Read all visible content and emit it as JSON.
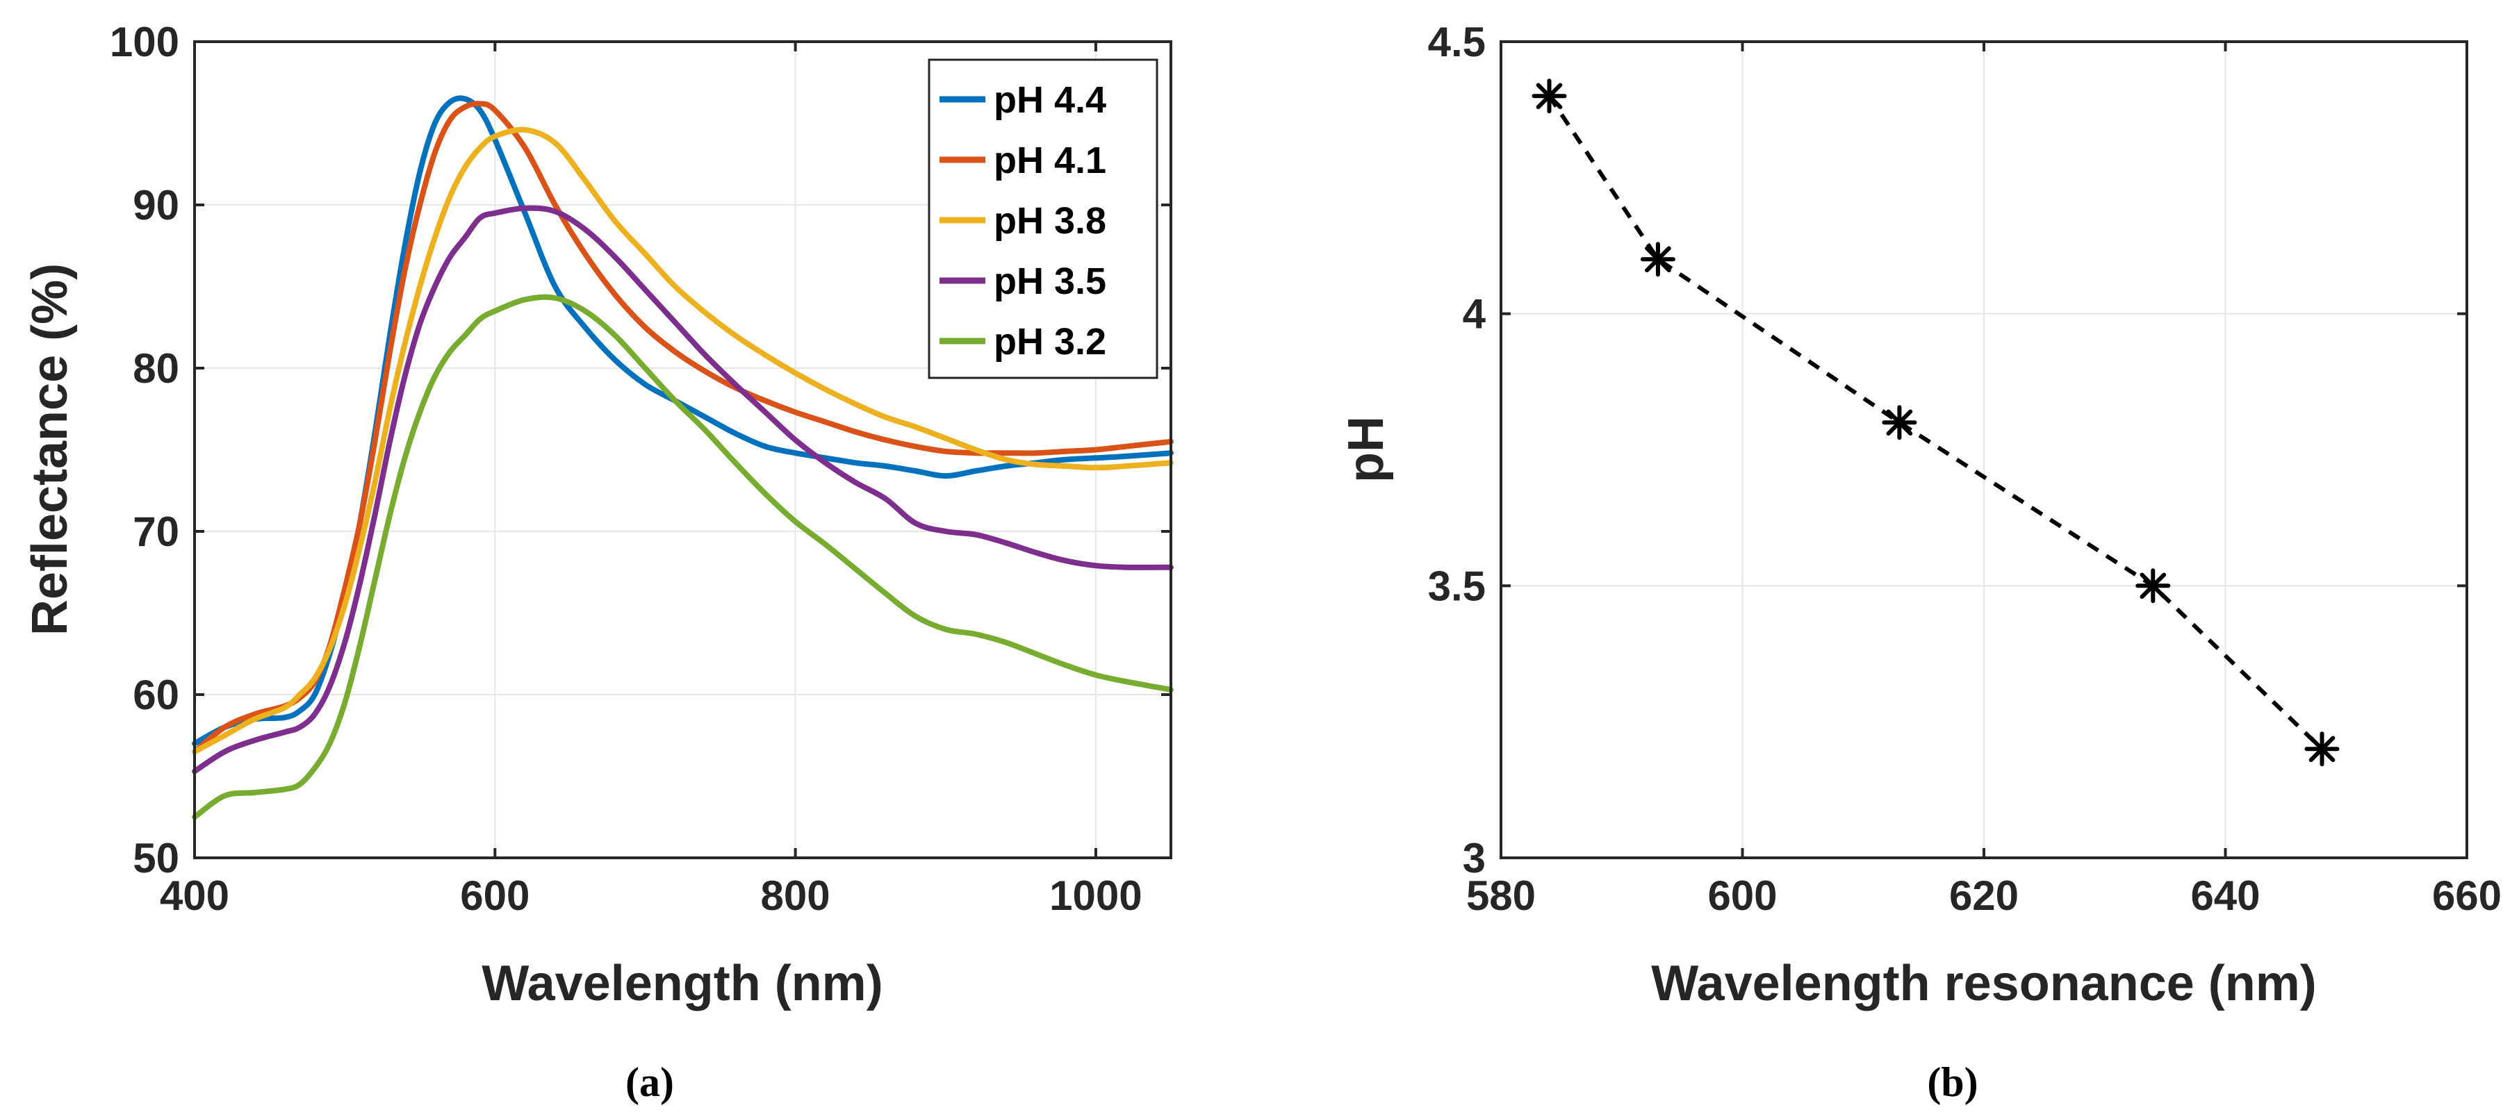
{
  "chart_data": [
    {
      "type": "line",
      "caption": "(a)",
      "xlabel": "Wavelength (nm)",
      "ylabel": "Reflectance (%)",
      "xlim": [
        400,
        1050
      ],
      "ylim": [
        50,
        100
      ],
      "xticks": [
        400,
        600,
        800,
        1000
      ],
      "yticks": [
        50,
        60,
        70,
        80,
        90,
        100
      ],
      "grid": true,
      "legend": "top-right",
      "series": [
        {
          "name": "pH 4.4",
          "color": "#0072BD",
          "x": [
            400,
            420,
            440,
            460,
            470,
            480,
            490,
            500,
            510,
            520,
            530,
            540,
            550,
            560,
            570,
            580,
            590,
            600,
            620,
            640,
            660,
            680,
            700,
            720,
            740,
            760,
            780,
            800,
            820,
            840,
            860,
            880,
            900,
            920,
            940,
            960,
            980,
            1000,
            1020,
            1050
          ],
          "y": [
            57,
            58,
            58.5,
            58.6,
            59,
            60,
            62.5,
            66,
            70.5,
            76,
            82,
            87.5,
            92,
            95,
            96.3,
            96.5,
            95.8,
            94,
            89.5,
            85,
            82.5,
            80.5,
            79,
            78,
            77,
            76,
            75.2,
            74.8,
            74.5,
            74.2,
            74,
            73.7,
            73.4,
            73.7,
            74,
            74.2,
            74.4,
            74.5,
            74.6,
            74.8
          ]
        },
        {
          "name": "pH 4.1",
          "color": "#D95319",
          "x": [
            400,
            420,
            440,
            460,
            470,
            480,
            490,
            500,
            510,
            520,
            530,
            540,
            550,
            560,
            570,
            580,
            590,
            600,
            620,
            640,
            660,
            680,
            700,
            720,
            740,
            760,
            780,
            800,
            820,
            840,
            860,
            880,
            900,
            920,
            940,
            960,
            980,
            1000,
            1020,
            1050
          ],
          "y": [
            56.5,
            58,
            58.8,
            59.3,
            59.8,
            60.8,
            63,
            66.5,
            70.5,
            75.5,
            81,
            86,
            90,
            93.2,
            95.2,
            96,
            96.2,
            95.8,
            93.5,
            90,
            87,
            84.5,
            82.5,
            81,
            79.8,
            78.8,
            78,
            77.3,
            76.7,
            76.1,
            75.6,
            75.2,
            74.9,
            74.8,
            74.8,
            74.8,
            74.9,
            75,
            75.2,
            75.5
          ]
        },
        {
          "name": "pH 3.8",
          "color": "#EDB120",
          "x": [
            400,
            420,
            440,
            460,
            470,
            480,
            490,
            500,
            510,
            520,
            530,
            540,
            550,
            560,
            570,
            580,
            590,
            600,
            620,
            640,
            660,
            680,
            700,
            720,
            740,
            760,
            780,
            800,
            820,
            840,
            860,
            880,
            900,
            920,
            940,
            960,
            980,
            1000,
            1020,
            1050
          ],
          "y": [
            56.5,
            57.5,
            58.5,
            59.2,
            60,
            61,
            62.8,
            65.5,
            69,
            73,
            77.5,
            81.5,
            85,
            88,
            90.5,
            92.3,
            93.5,
            94.2,
            94.6,
            93.8,
            91.5,
            89,
            87,
            85,
            83.4,
            82,
            80.8,
            79.7,
            78.7,
            77.8,
            77,
            76.4,
            75.7,
            75,
            74.4,
            74.1,
            74,
            73.9,
            74,
            74.2
          ]
        },
        {
          "name": "pH 3.5",
          "color": "#7E2F8E",
          "x": [
            400,
            420,
            440,
            460,
            470,
            480,
            490,
            500,
            510,
            520,
            530,
            540,
            550,
            560,
            570,
            580,
            590,
            600,
            620,
            640,
            660,
            680,
            700,
            720,
            740,
            760,
            780,
            800,
            820,
            840,
            860,
            880,
            900,
            920,
            940,
            960,
            980,
            1000,
            1020,
            1050
          ],
          "y": [
            55.3,
            56.5,
            57.2,
            57.7,
            58,
            58.8,
            60.5,
            63.2,
            66.8,
            71,
            75.5,
            79.5,
            82.7,
            85,
            86.8,
            88,
            89.2,
            89.5,
            89.8,
            89.6,
            88.5,
            86.8,
            84.8,
            82.8,
            80.8,
            79,
            77.3,
            75.6,
            74.2,
            73,
            72,
            70.5,
            70,
            69.8,
            69.3,
            68.7,
            68.2,
            67.9,
            67.8,
            67.8
          ]
        },
        {
          "name": "pH 3.2",
          "color": "#77AC30",
          "x": [
            400,
            420,
            440,
            460,
            470,
            480,
            490,
            500,
            510,
            520,
            530,
            540,
            550,
            560,
            570,
            580,
            590,
            600,
            620,
            640,
            660,
            680,
            700,
            720,
            740,
            760,
            780,
            800,
            820,
            840,
            860,
            880,
            900,
            920,
            940,
            960,
            980,
            1000,
            1020,
            1050
          ],
          "y": [
            52.5,
            53.8,
            54,
            54.2,
            54.5,
            55.5,
            57,
            59.5,
            63,
            67,
            71,
            74.5,
            77.3,
            79.5,
            81,
            82,
            83,
            83.5,
            84.2,
            84.3,
            83.5,
            82,
            80,
            78,
            76.2,
            74.2,
            72.3,
            70.6,
            69.2,
            67.7,
            66.2,
            64.8,
            64,
            63.7,
            63.2,
            62.5,
            61.8,
            61.2,
            60.8,
            60.3
          ]
        }
      ]
    },
    {
      "type": "line",
      "caption": "(b)",
      "xlabel": "Wavelength resonance (nm)",
      "ylabel": "pH",
      "xlim": [
        580,
        660
      ],
      "ylim": [
        3,
        4.5
      ],
      "xticks": [
        580,
        600,
        620,
        640,
        660
      ],
      "yticks": [
        "3",
        "3.5",
        "4",
        "4.5"
      ],
      "ytick_values": [
        3,
        3.5,
        4,
        4.5
      ],
      "grid": true,
      "line_style": "dashed",
      "marker": "asterisk",
      "color": "#000000",
      "x": [
        584,
        593,
        613,
        634,
        648
      ],
      "y": [
        4.4,
        4.1,
        3.8,
        3.5,
        3.2
      ]
    }
  ]
}
